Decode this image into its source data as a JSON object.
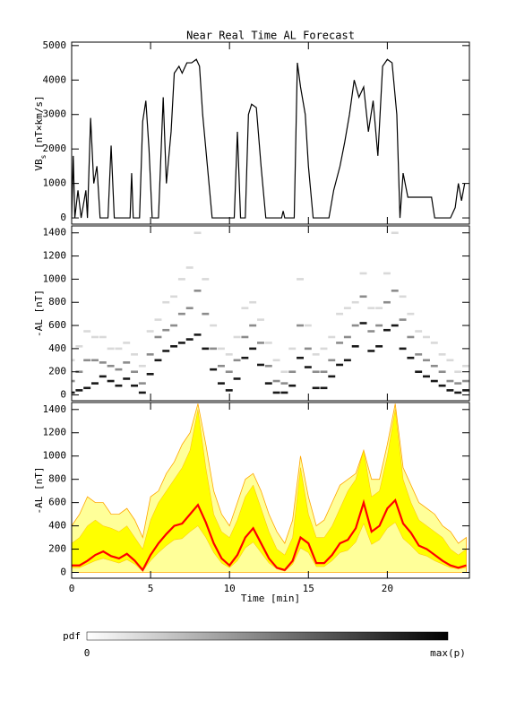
{
  "chart_data": [
    {
      "type": "line",
      "title": "Near Real Time AL Forecast",
      "ylabel": [
        "VB",
        "s",
        " [nT×km/s]"
      ],
      "ylim": [
        -180,
        5100
      ],
      "yticks": [
        0,
        1000,
        2000,
        3000,
        4000,
        5000
      ],
      "color": "#000000",
      "x": [
        0,
        0.1,
        0.2,
        0.4,
        0.6,
        0.9,
        1.0,
        1.2,
        1.4,
        1.6,
        1.8,
        2.3,
        2.5,
        2.7,
        3.7,
        3.8,
        3.9,
        4.3,
        4.5,
        4.7,
        4.9,
        5.1,
        5.5,
        5.8,
        6.0,
        6.3,
        6.5,
        6.8,
        7.0,
        7.3,
        7.6,
        7.9,
        8.1,
        8.3,
        8.6,
        8.9,
        10.3,
        10.5,
        10.7,
        11.0,
        11.2,
        11.4,
        11.7,
        12.0,
        12.3,
        13.3,
        13.4,
        13.5,
        14.1,
        14.3,
        14.5,
        14.8,
        15.0,
        15.3,
        16.3,
        16.6,
        17.0,
        17.3,
        17.6,
        17.9,
        18.2,
        18.5,
        18.8,
        19.1,
        19.4,
        19.7,
        20.0,
        20.3,
        20.6,
        20.8,
        21.0,
        21.3,
        22.8,
        23.0,
        24.0,
        24.3,
        24.5,
        24.7,
        24.9
      ],
      "values": [
        0,
        1800,
        0,
        800,
        0,
        800,
        0,
        2900,
        1000,
        1500,
        0,
        0,
        2100,
        0,
        0,
        1300,
        0,
        0,
        2800,
        3400,
        2000,
        0,
        0,
        3500,
        1000,
        2500,
        4200,
        4400,
        4200,
        4500,
        4500,
        4600,
        4400,
        3000,
        1500,
        0,
        0,
        2500,
        0,
        0,
        3000,
        3300,
        3200,
        1500,
        0,
        0,
        200,
        0,
        0,
        4500,
        3800,
        3000,
        1500,
        0,
        0,
        800,
        1500,
        2200,
        3000,
        4000,
        3500,
        3800,
        2500,
        3400,
        1800,
        4400,
        4600,
        4500,
        3000,
        0,
        1300,
        600,
        600,
        0,
        0,
        300,
        1000,
        500,
        1000
      ]
    },
    {
      "type": "heatmap",
      "ylabel": "-AL [nT]",
      "ylim": [
        -50,
        1460
      ],
      "yticks": [
        0,
        200,
        400,
        600,
        800,
        1000,
        1200,
        1400
      ],
      "x": [
        0,
        0.5,
        1,
        1.5,
        2,
        2.5,
        3,
        3.5,
        4,
        4.5,
        5,
        5.5,
        6,
        6.5,
        7,
        7.5,
        8,
        8.5,
        9,
        9.5,
        10,
        10.5,
        11,
        11.5,
        12,
        12.5,
        13,
        13.5,
        14,
        14.5,
        15,
        15.5,
        16,
        16.5,
        17,
        17.5,
        18,
        18.5,
        19,
        19.5,
        20,
        20.5,
        21,
        21.5,
        22,
        22.5,
        23,
        23.5,
        24,
        24.5,
        25
      ],
      "levels": [
        {
          "p": 0.9,
          "y": [
            20,
            40,
            60,
            100,
            160,
            120,
            80,
            140,
            80,
            20,
            180,
            300,
            380,
            420,
            450,
            480,
            520,
            400,
            220,
            100,
            40,
            140,
            320,
            400,
            260,
            100,
            20,
            20,
            80,
            320,
            240,
            60,
            60,
            160,
            260,
            300,
            420,
            620,
            380,
            420,
            560,
            600,
            400,
            320,
            200,
            160,
            120,
            80,
            40,
            20,
            40
          ]
        },
        {
          "p": 0.45,
          "y": [
            120,
            200,
            300,
            300,
            280,
            250,
            220,
            280,
            200,
            100,
            350,
            500,
            560,
            600,
            700,
            750,
            900,
            700,
            400,
            250,
            200,
            300,
            500,
            600,
            450,
            250,
            120,
            100,
            200,
            600,
            400,
            200,
            200,
            300,
            450,
            500,
            600,
            850,
            550,
            600,
            800,
            900,
            650,
            500,
            350,
            300,
            250,
            200,
            120,
            100,
            120
          ]
        },
        {
          "p": 0.15,
          "y": [
            300,
            420,
            550,
            500,
            500,
            400,
            400,
            450,
            350,
            250,
            550,
            650,
            800,
            850,
            1000,
            1100,
            1400,
            1000,
            600,
            400,
            350,
            500,
            750,
            800,
            650,
            450,
            300,
            200,
            400,
            1000,
            600,
            350,
            400,
            500,
            700,
            750,
            800,
            1050,
            750,
            750,
            1050,
            1400,
            850,
            700,
            550,
            500,
            450,
            350,
            300,
            200,
            250
          ]
        }
      ],
      "colorbar": {
        "label": "pdf",
        "min_label": "0",
        "max_label": "max(p)"
      }
    },
    {
      "type": "band",
      "ylabel": "-AL [nT]",
      "xlabel": "Time [min]",
      "ylim": [
        -50,
        1460
      ],
      "yticks": [
        0,
        200,
        400,
        600,
        800,
        1000,
        1200,
        1400
      ],
      "xlim": [
        0,
        25.2
      ],
      "xticks": [
        0,
        5,
        10,
        15,
        20
      ],
      "colors": {
        "outer": "#ffff99",
        "outer_line": "#ffa500",
        "band": "#ffff00",
        "median": "#ff0000"
      },
      "x": [
        0,
        0.5,
        1,
        1.5,
        2,
        2.5,
        3,
        3.5,
        4,
        4.5,
        5,
        5.5,
        6,
        6.5,
        7,
        7.5,
        8,
        8.5,
        9,
        9.5,
        10,
        10.5,
        11,
        11.5,
        12,
        12.5,
        13,
        13.5,
        14,
        14.5,
        15,
        15.5,
        16,
        16.5,
        17,
        17.5,
        18,
        18.5,
        19,
        19.5,
        20,
        20.5,
        21,
        21.5,
        22,
        22.5,
        23,
        23.5,
        24,
        24.5,
        25
      ],
      "median": [
        60,
        60,
        100,
        150,
        180,
        140,
        120,
        160,
        100,
        20,
        150,
        250,
        330,
        400,
        420,
        500,
        580,
        430,
        250,
        120,
        60,
        150,
        300,
        380,
        250,
        120,
        40,
        20,
        100,
        300,
        250,
        80,
        80,
        150,
        250,
        280,
        380,
        600,
        350,
        400,
        550,
        620,
        420,
        340,
        230,
        200,
        150,
        100,
        60,
        40,
        60
      ],
      "band_low": [
        40,
        40,
        70,
        100,
        120,
        100,
        80,
        110,
        70,
        10,
        100,
        170,
        230,
        280,
        290,
        350,
        400,
        300,
        170,
        80,
        40,
        100,
        210,
        260,
        170,
        80,
        30,
        10,
        70,
        210,
        170,
        50,
        50,
        100,
        170,
        190,
        260,
        420,
        240,
        280,
        380,
        430,
        290,
        230,
        160,
        140,
        100,
        70,
        40,
        30,
        40
      ],
      "band_high": [
        250,
        300,
        400,
        450,
        400,
        380,
        350,
        400,
        300,
        200,
        450,
        600,
        700,
        800,
        900,
        1050,
        1400,
        900,
        500,
        350,
        300,
        450,
        650,
        750,
        550,
        350,
        200,
        150,
        300,
        900,
        500,
        300,
        300,
        400,
        550,
        700,
        800,
        1050,
        650,
        700,
        1000,
        1400,
        800,
        600,
        450,
        400,
        350,
        300,
        200,
        150,
        200
      ],
      "outer_high": [
        400,
        500,
        650,
        600,
        600,
        500,
        500,
        550,
        450,
        300,
        650,
        700,
        850,
        950,
        1100,
        1200,
        1450,
        1100,
        700,
        500,
        400,
        600,
        800,
        850,
        700,
        500,
        350,
        250,
        450,
        1000,
        650,
        400,
        450,
        600,
        750,
        800,
        850,
        1050,
        800,
        800,
        1100,
        1450,
        900,
        750,
        600,
        550,
        500,
        400,
        350,
        250,
        300
      ]
    }
  ]
}
